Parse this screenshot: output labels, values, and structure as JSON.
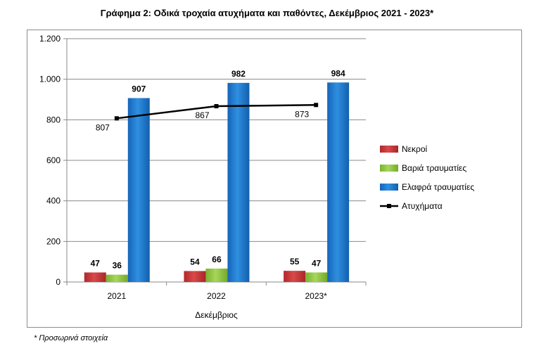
{
  "title": "Γράφημα 2: Οδικά τροχαία ατυχήματα και παθόντες, Δεκέμβριος 2021 - 2023*",
  "footnote": "* Προσωρινά στοιχεία",
  "chart_data": {
    "type": "bar",
    "categories": [
      "2021",
      "2022",
      "2023*"
    ],
    "xlabel": "Δεκέμβριος",
    "ylabel": "",
    "ylim": [
      0,
      1200
    ],
    "yticks": [
      0,
      200,
      400,
      600,
      800,
      1000,
      1200
    ],
    "ytick_labels": [
      "0",
      "200",
      "400",
      "600",
      "800",
      "1.000",
      "1.200"
    ],
    "grid": true,
    "legend_position": "right",
    "series": [
      {
        "name": "Νεκροί",
        "type": "bar",
        "color": "#c0393b",
        "values": [
          47,
          54,
          55
        ]
      },
      {
        "name": "Βαριά τραυματίες",
        "type": "bar",
        "color": "#8cc63f",
        "values": [
          36,
          66,
          47
        ]
      },
      {
        "name": "Ελαφρά τραυματίες",
        "type": "bar",
        "color": "#1f77c9",
        "values": [
          907,
          982,
          984
        ]
      },
      {
        "name": "Ατυχήματα",
        "type": "line",
        "color": "#000000",
        "values": [
          807,
          867,
          873
        ]
      }
    ]
  }
}
